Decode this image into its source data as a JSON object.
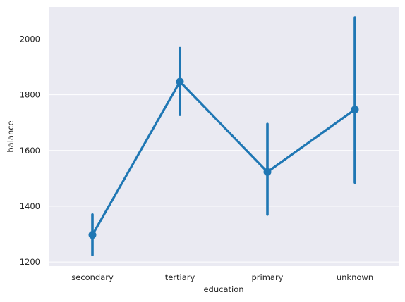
{
  "chart_data": {
    "type": "line",
    "style": "point-plot with error bars",
    "xlabel": "education",
    "ylabel": "balance",
    "categories": [
      "secondary",
      "tertiary",
      "primary",
      "unknown"
    ],
    "series": [
      {
        "values": [
          1297,
          1847,
          1523,
          1747
        ],
        "ci_low": [
          1225,
          1728,
          1370,
          1485
        ],
        "ci_high": [
          1370,
          1967,
          1695,
          2077
        ]
      }
    ],
    "ylim": [
      1185,
      2115
    ],
    "yticks": [
      1200,
      1400,
      1600,
      1800,
      2000
    ],
    "grid": true,
    "color": "#1f77b4",
    "background": "#eaeaf2"
  }
}
